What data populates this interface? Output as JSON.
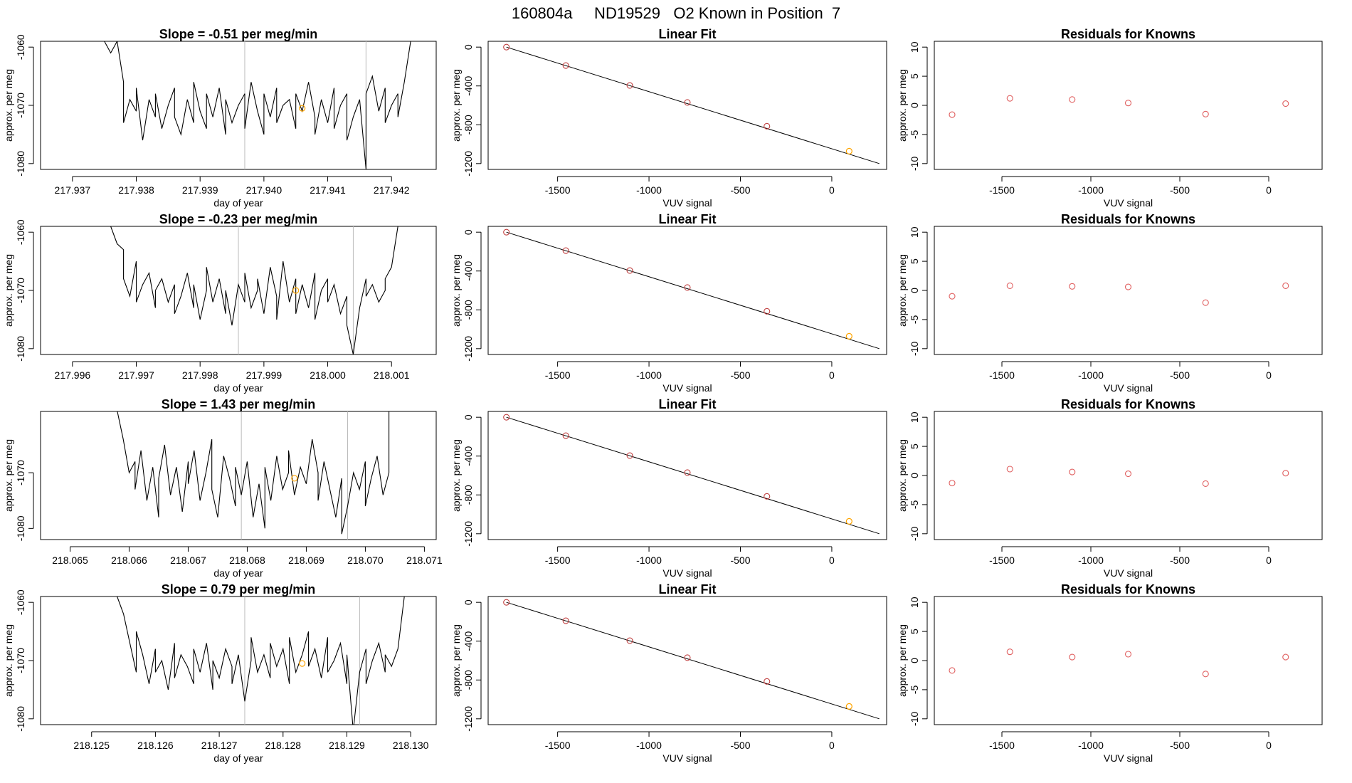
{
  "page_title": "160804a     ND19529   O2 Known in Position  7",
  "colors": {
    "series_line": "#000000",
    "known_point": "#ffa500",
    "residual_point": "#e06060",
    "fit_point": "#c04040",
    "vline": "#bbbbbb"
  },
  "chart_data": [
    {
      "type": "line",
      "row": 0,
      "col": 0,
      "title": "Slope =  -0.51  per meg/min",
      "xlabel": "day of year",
      "ylabel": "approx. per meg",
      "xlim": [
        217.9365,
        217.9427
      ],
      "ylim": [
        -1081,
        -1059
      ],
      "xticks": [
        "217.937",
        "217.938",
        "217.939",
        "217.940",
        "217.941",
        "217.942"
      ],
      "xtick_values": [
        217.937,
        217.938,
        217.939,
        217.94,
        217.941,
        217.942
      ],
      "yticks": [
        "-1060",
        "-1070",
        "-1080"
      ],
      "ytick_values": [
        -1060,
        -1070,
        -1080
      ],
      "vlines": [
        217.9397,
        217.9416
      ],
      "marker": {
        "x": 217.9406,
        "y": -1070.5
      },
      "series_x": [
        217.9375,
        217.9376,
        217.9377,
        217.9378,
        217.9378,
        217.9379,
        217.938,
        217.938,
        217.9381,
        217.9382,
        217.9383,
        217.9383,
        217.9384,
        217.9385,
        217.9386,
        217.9386,
        217.9387,
        217.9388,
        217.9389,
        217.9389,
        217.939,
        217.9391,
        217.9391,
        217.9392,
        217.9393,
        217.9394,
        217.9394,
        217.9395,
        217.9396,
        217.9397,
        217.9397,
        217.9398,
        217.9399,
        217.94,
        217.94,
        217.9401,
        217.9402,
        217.9402,
        217.9403,
        217.9404,
        217.9405,
        217.9405,
        217.9406,
        217.9407,
        217.9408,
        217.9408,
        217.9409,
        217.941,
        217.9411,
        217.9411,
        217.9412,
        217.9413,
        217.9413,
        217.9414,
        217.9415,
        217.9416,
        217.9416,
        217.9417,
        217.9418,
        217.9419,
        217.9419,
        217.942,
        217.9421,
        217.9421,
        217.9422,
        217.9423
      ],
      "series_y": [
        -1059,
        -1061,
        -1059,
        -1066,
        -1073,
        -1069,
        -1071,
        -1067,
        -1076,
        -1069,
        -1072,
        -1068,
        -1074,
        -1070,
        -1067,
        -1072,
        -1075,
        -1069,
        -1073,
        -1066,
        -1071,
        -1074,
        -1068,
        -1072,
        -1067,
        -1075,
        -1069,
        -1073,
        -1070,
        -1068,
        -1074,
        -1066,
        -1071,
        -1075,
        -1068,
        -1072,
        -1067,
        -1073,
        -1070,
        -1069,
        -1074,
        -1068,
        -1071,
        -1066,
        -1072,
        -1075,
        -1069,
        -1073,
        -1067,
        -1074,
        -1070,
        -1068,
        -1076,
        -1072,
        -1069,
        -1081,
        -1068,
        -1065,
        -1071,
        -1067,
        -1073,
        -1070,
        -1068,
        -1072,
        -1066,
        -1059
      ]
    },
    {
      "type": "scatter",
      "row": 0,
      "col": 1,
      "title": "Linear Fit",
      "xlabel": "VUV signal",
      "ylabel": "approx. per meg",
      "xlim": [
        -1880,
        300
      ],
      "ylim": [
        -1260,
        60
      ],
      "xticks": [
        "-1500",
        "-1000",
        "-500",
        "0"
      ],
      "xtick_values": [
        -1500,
        -1000,
        -500,
        0
      ],
      "yticks": [
        "0",
        "-400",
        "-800",
        "-1200"
      ],
      "ytick_values": [
        0,
        -400,
        -800,
        -1200
      ],
      "fit_line": [
        [
          -1780,
          0
        ],
        [
          260,
          -1200
        ]
      ],
      "points_x": [
        -1780,
        -1455,
        -1105,
        -790,
        -355
      ],
      "points_y": [
        0,
        -190,
        -395,
        -570,
        -815
      ],
      "known_point": {
        "x": 95,
        "y": -1072
      }
    },
    {
      "type": "scatter",
      "row": 0,
      "col": 2,
      "title": "Residuals for Knowns",
      "xlabel": "VUV signal",
      "ylabel": "approx. per meg",
      "xlim": [
        -1880,
        300
      ],
      "ylim": [
        -11,
        11
      ],
      "xticks": [
        "-1500",
        "-1000",
        "-500",
        "0"
      ],
      "xtick_values": [
        -1500,
        -1000,
        -500,
        0
      ],
      "yticks": [
        "10",
        "5",
        "0",
        "-5",
        "-10"
      ],
      "ytick_values": [
        10,
        5,
        0,
        -5,
        -10
      ],
      "points_x": [
        -1780,
        -1455,
        -1105,
        -790,
        -355,
        95
      ],
      "points_y": [
        -1.6,
        1.2,
        1.0,
        0.4,
        -1.5,
        0.3
      ]
    },
    {
      "type": "line",
      "row": 1,
      "col": 0,
      "title": "Slope =  -0.23  per meg/min",
      "xlabel": "day of year",
      "ylabel": "approx. per meg",
      "xlim": [
        217.9955,
        218.0017
      ],
      "ylim": [
        -1081,
        -1059
      ],
      "xticks": [
        "217.996",
        "217.997",
        "217.998",
        "217.999",
        "218.000",
        "218.001"
      ],
      "xtick_values": [
        217.996,
        217.997,
        217.998,
        217.999,
        218.0,
        218.001
      ],
      "yticks": [
        "-1060",
        "-1070",
        "-1080"
      ],
      "ytick_values": [
        -1060,
        -1070,
        -1080
      ],
      "vlines": [
        217.9986,
        218.0004
      ],
      "marker": {
        "x": 217.9995,
        "y": -1070
      },
      "series_x": [
        217.9966,
        217.9967,
        217.9968,
        217.9968,
        217.9969,
        217.997,
        217.997,
        217.9971,
        217.9972,
        217.9973,
        217.9973,
        217.9974,
        217.9975,
        217.9976,
        217.9976,
        217.9977,
        217.9978,
        217.9979,
        217.9979,
        217.998,
        217.9981,
        217.9981,
        217.9982,
        217.9983,
        217.9984,
        217.9984,
        217.9985,
        217.9986,
        217.9987,
        217.9987,
        217.9988,
        217.9989,
        217.9989,
        217.999,
        217.9991,
        217.9992,
        217.9992,
        217.9993,
        217.9994,
        217.9995,
        217.9995,
        217.9996,
        217.9997,
        217.9998,
        217.9998,
        217.9999,
        218.0,
        218.0,
        218.0001,
        218.0002,
        218.0003,
        218.0003,
        218.0004,
        218.0005,
        218.0006,
        218.0006,
        218.0007,
        218.0008,
        218.0009,
        218.0009,
        218.001,
        218.0011
      ],
      "series_y": [
        -1059,
        -1062,
        -1063,
        -1068,
        -1071,
        -1065,
        -1072,
        -1069,
        -1067,
        -1073,
        -1070,
        -1068,
        -1072,
        -1069,
        -1074,
        -1071,
        -1067,
        -1073,
        -1069,
        -1075,
        -1070,
        -1066,
        -1072,
        -1068,
        -1074,
        -1070,
        -1076,
        -1069,
        -1072,
        -1067,
        -1073,
        -1070,
        -1068,
        -1074,
        -1066,
        -1071,
        -1075,
        -1065,
        -1072,
        -1068,
        -1074,
        -1069,
        -1073,
        -1067,
        -1075,
        -1070,
        -1068,
        -1072,
        -1069,
        -1074,
        -1071,
        -1076,
        -1081,
        -1073,
        -1068,
        -1071,
        -1069,
        -1072,
        -1070,
        -1068,
        -1066,
        -1059
      ]
    },
    {
      "type": "scatter",
      "row": 1,
      "col": 1,
      "title": "Linear Fit",
      "xlabel": "VUV signal",
      "ylabel": "approx. per meg",
      "xlim": [
        -1880,
        300
      ],
      "ylim": [
        -1260,
        60
      ],
      "xticks": [
        "-1500",
        "-1000",
        "-500",
        "0"
      ],
      "xtick_values": [
        -1500,
        -1000,
        -500,
        0
      ],
      "yticks": [
        "0",
        "-400",
        "-800",
        "-1200"
      ],
      "ytick_values": [
        0,
        -400,
        -800,
        -1200
      ],
      "fit_line": [
        [
          -1780,
          0
        ],
        [
          260,
          -1200
        ]
      ],
      "points_x": [
        -1780,
        -1455,
        -1105,
        -790,
        -355
      ],
      "points_y": [
        0,
        -190,
        -395,
        -570,
        -815
      ],
      "known_point": {
        "x": 95,
        "y": -1072
      }
    },
    {
      "type": "scatter",
      "row": 1,
      "col": 2,
      "title": "Residuals for Knowns",
      "xlabel": "VUV signal",
      "ylabel": "approx. per meg",
      "xlim": [
        -1880,
        300
      ],
      "ylim": [
        -11,
        11
      ],
      "xticks": [
        "-1500",
        "-1000",
        "-500",
        "0"
      ],
      "xtick_values": [
        -1500,
        -1000,
        -500,
        0
      ],
      "yticks": [
        "10",
        "5",
        "0",
        "-5",
        "-10"
      ],
      "ytick_values": [
        10,
        5,
        0,
        -5,
        -10
      ],
      "points_x": [
        -1780,
        -1455,
        -1105,
        -790,
        -355,
        95
      ],
      "points_y": [
        -1.0,
        0.8,
        0.7,
        0.6,
        -2.1,
        0.8
      ]
    },
    {
      "type": "line",
      "row": 2,
      "col": 0,
      "title": "Slope =  1.43  per meg/min",
      "xlabel": "day of year",
      "ylabel": "approx. per meg",
      "xlim": [
        218.0645,
        218.0712
      ],
      "ylim": [
        -1082,
        -1059
      ],
      "xticks": [
        "218.065",
        "218.066",
        "218.067",
        "218.068",
        "218.069",
        "218.070",
        "218.071"
      ],
      "xtick_values": [
        218.065,
        218.066,
        218.067,
        218.068,
        218.069,
        218.07,
        218.071
      ],
      "yticks": [
        "-1070",
        "-1080"
      ],
      "ytick_values": [
        -1070,
        -1080
      ],
      "vlines": [
        218.0679,
        218.0697
      ],
      "marker": {
        "x": 218.0688,
        "y": -1071
      },
      "series_x": [
        218.0658,
        218.0659,
        218.066,
        218.0661,
        218.0661,
        218.0662,
        218.0663,
        218.0664,
        218.0665,
        218.0665,
        218.0666,
        218.0667,
        218.0668,
        218.0669,
        218.067,
        218.067,
        218.0671,
        218.0672,
        218.0673,
        218.0674,
        218.0674,
        218.0675,
        218.0676,
        218.0677,
        218.0678,
        218.0678,
        218.0679,
        218.068,
        218.0681,
        218.0682,
        218.0683,
        218.0683,
        218.0684,
        218.0685,
        218.0686,
        218.0687,
        218.0687,
        218.0688,
        218.0689,
        218.069,
        218.0691,
        218.0692,
        218.0692,
        218.0693,
        218.0694,
        218.0695,
        218.0696,
        218.0696,
        218.0697,
        218.0698,
        218.0699,
        218.07,
        218.07,
        218.0701,
        218.0702,
        218.0703,
        218.0704,
        218.0704
      ],
      "series_y": [
        -1059,
        -1064,
        -1070,
        -1068,
        -1073,
        -1066,
        -1075,
        -1069,
        -1078,
        -1071,
        -1065,
        -1074,
        -1069,
        -1077,
        -1068,
        -1072,
        -1066,
        -1075,
        -1070,
        -1064,
        -1073,
        -1078,
        -1067,
        -1071,
        -1076,
        -1069,
        -1074,
        -1068,
        -1078,
        -1072,
        -1080,
        -1069,
        -1075,
        -1067,
        -1073,
        -1070,
        -1066,
        -1074,
        -1069,
        -1072,
        -1064,
        -1070,
        -1075,
        -1068,
        -1073,
        -1078,
        -1071,
        -1081,
        -1076,
        -1070,
        -1073,
        -1068,
        -1076,
        -1071,
        -1067,
        -1074,
        -1070,
        -1059
      ]
    },
    {
      "type": "scatter",
      "row": 2,
      "col": 1,
      "title": "Linear Fit",
      "xlabel": "VUV signal",
      "ylabel": "approx. per meg",
      "xlim": [
        -1880,
        300
      ],
      "ylim": [
        -1260,
        60
      ],
      "xticks": [
        "-1500",
        "-1000",
        "-500",
        "0"
      ],
      "xtick_values": [
        -1500,
        -1000,
        -500,
        0
      ],
      "yticks": [
        "0",
        "-400",
        "-800",
        "-1200"
      ],
      "ytick_values": [
        0,
        -400,
        -800,
        -1200
      ],
      "fit_line": [
        [
          -1780,
          0
        ],
        [
          260,
          -1200
        ]
      ],
      "points_x": [
        -1780,
        -1455,
        -1105,
        -790,
        -355
      ],
      "points_y": [
        0,
        -190,
        -395,
        -570,
        -815
      ],
      "known_point": {
        "x": 95,
        "y": -1072
      }
    },
    {
      "type": "scatter",
      "row": 2,
      "col": 2,
      "title": "Residuals for Knowns",
      "xlabel": "VUV signal",
      "ylabel": "approx. per meg",
      "xlim": [
        -1880,
        300
      ],
      "ylim": [
        -11,
        11
      ],
      "xticks": [
        "-1500",
        "-1000",
        "-500",
        "0"
      ],
      "xtick_values": [
        -1500,
        -1000,
        -500,
        0
      ],
      "yticks": [
        "10",
        "5",
        "0",
        "-5",
        "-10"
      ],
      "ytick_values": [
        10,
        5,
        0,
        -5,
        -10
      ],
      "points_x": [
        -1780,
        -1455,
        -1105,
        -790,
        -355,
        95
      ],
      "points_y": [
        -1.3,
        1.1,
        0.6,
        0.3,
        -1.4,
        0.4
      ]
    },
    {
      "type": "line",
      "row": 3,
      "col": 0,
      "title": "Slope =  0.79  per meg/min",
      "xlabel": "day of year",
      "ylabel": "approx. per meg",
      "xlim": [
        218.1242,
        218.1304
      ],
      "ylim": [
        -1081,
        -1059
      ],
      "xticks": [
        "218.125",
        "218.126",
        "218.127",
        "218.128",
        "218.129",
        "218.130"
      ],
      "xtick_values": [
        218.125,
        218.126,
        218.127,
        218.128,
        218.129,
        218.13
      ],
      "yticks": [
        "-1060",
        "-1070",
        "-1080"
      ],
      "ytick_values": [
        -1060,
        -1070,
        -1080
      ],
      "vlines": [
        218.1274,
        218.1292
      ],
      "marker": {
        "x": 218.1283,
        "y": -1070.5
      },
      "series_x": [
        218.1254,
        218.1255,
        218.1256,
        218.1257,
        218.1257,
        218.1258,
        218.1259,
        218.126,
        218.126,
        218.1261,
        218.1262,
        218.1263,
        218.1263,
        218.1264,
        218.1265,
        218.1266,
        218.1266,
        218.1267,
        218.1268,
        218.1269,
        218.1269,
        218.127,
        218.1271,
        218.1272,
        218.1272,
        218.1273,
        218.1274,
        218.1275,
        218.1275,
        218.1276,
        218.1277,
        218.1278,
        218.1278,
        218.1279,
        218.128,
        218.1281,
        218.1281,
        218.1282,
        218.1283,
        218.1284,
        218.1284,
        218.1285,
        218.1286,
        218.1287,
        218.1287,
        218.1288,
        218.1289,
        218.129,
        218.129,
        218.1291,
        218.1292,
        218.1293,
        218.1293,
        218.1294,
        218.1295,
        218.1296,
        218.1296,
        218.1297,
        218.1298,
        218.1299
      ],
      "series_y": [
        -1059,
        -1062,
        -1067,
        -1072,
        -1065,
        -1069,
        -1074,
        -1068,
        -1072,
        -1070,
        -1075,
        -1067,
        -1073,
        -1069,
        -1071,
        -1074,
        -1068,
        -1072,
        -1067,
        -1075,
        -1070,
        -1073,
        -1068,
        -1071,
        -1074,
        -1069,
        -1077,
        -1070,
        -1066,
        -1072,
        -1069,
        -1073,
        -1067,
        -1071,
        -1068,
        -1074,
        -1066,
        -1072,
        -1069,
        -1065,
        -1071,
        -1068,
        -1073,
        -1066,
        -1072,
        -1070,
        -1067,
        -1074,
        -1069,
        -1082,
        -1072,
        -1068,
        -1074,
        -1070,
        -1067,
        -1072,
        -1069,
        -1071,
        -1068,
        -1059
      ]
    },
    {
      "type": "scatter",
      "row": 3,
      "col": 1,
      "title": "Linear Fit",
      "xlabel": "VUV signal",
      "ylabel": "approx. per meg",
      "xlim": [
        -1880,
        300
      ],
      "ylim": [
        -1260,
        60
      ],
      "xticks": [
        "-1500",
        "-1000",
        "-500",
        "0"
      ],
      "xtick_values": [
        -1500,
        -1000,
        -500,
        0
      ],
      "yticks": [
        "0",
        "-400",
        "-800",
        "-1200"
      ],
      "ytick_values": [
        0,
        -400,
        -800,
        -1200
      ],
      "fit_line": [
        [
          -1780,
          0
        ],
        [
          260,
          -1200
        ]
      ],
      "points_x": [
        -1780,
        -1455,
        -1105,
        -790,
        -355
      ],
      "points_y": [
        0,
        -190,
        -395,
        -570,
        -815
      ],
      "known_point": {
        "x": 95,
        "y": -1072
      }
    },
    {
      "type": "scatter",
      "row": 3,
      "col": 2,
      "title": "Residuals for Knowns",
      "xlabel": "VUV signal",
      "ylabel": "approx. per meg",
      "xlim": [
        -1880,
        300
      ],
      "ylim": [
        -11,
        11
      ],
      "xticks": [
        "-1500",
        "-1000",
        "-500",
        "0"
      ],
      "xtick_values": [
        -1500,
        -1000,
        -500,
        0
      ],
      "yticks": [
        "10",
        "5",
        "0",
        "-5",
        "-10"
      ],
      "ytick_values": [
        10,
        5,
        0,
        -5,
        -10
      ],
      "points_x": [
        -1780,
        -1455,
        -1105,
        -790,
        -355,
        95
      ],
      "points_y": [
        -1.7,
        1.5,
        0.6,
        1.1,
        -2.3,
        0.6
      ]
    }
  ]
}
